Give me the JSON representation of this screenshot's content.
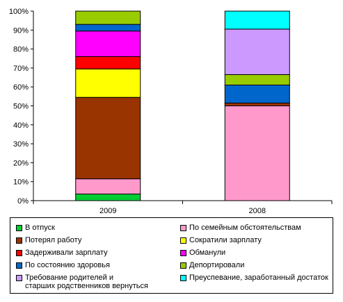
{
  "chart_data": {
    "type": "bar",
    "stacked": true,
    "categories": [
      "2009",
      "2008"
    ],
    "yticks": [
      "0%",
      "10%",
      "20%",
      "30%",
      "40%",
      "50%",
      "60%",
      "70%",
      "80%",
      "90%",
      "100%"
    ],
    "ylim": [
      0,
      100
    ],
    "grid": false,
    "legend": "bottom",
    "series": [
      {
        "name": "В отпуск",
        "color": "#00cc33",
        "values": [
          3.5,
          0.0
        ]
      },
      {
        "name": "По семейным обстоятельствам",
        "color": "#ff99cc",
        "values": [
          8.0,
          50.0
        ]
      },
      {
        "name": "Потерял работу",
        "color": "#993300",
        "values": [
          43.0,
          1.5
        ]
      },
      {
        "name": "Сократили зарплату",
        "color": "#ffff00",
        "values": [
          15.0,
          0.0
        ]
      },
      {
        "name": "Задерживали зарплату",
        "color": "#ff0000",
        "values": [
          6.5,
          0.0
        ]
      },
      {
        "name": "Обманули",
        "color": "#ff00ff",
        "values": [
          13.5,
          0.0
        ]
      },
      {
        "name": "По состоянию здоровья",
        "color": "#0066cc",
        "values": [
          3.5,
          9.5
        ]
      },
      {
        "name": "Депортировали",
        "color": "#99cc00",
        "values": [
          7.0,
          5.5
        ]
      },
      {
        "name": "Требование родителей и\nстарших родственников вернуться",
        "color": "#cc99ff",
        "values": [
          0.0,
          24.0
        ]
      },
      {
        "name": "Преуспевание, заработанный достаток",
        "color": "#00ffff",
        "values": [
          0.0,
          9.5
        ]
      }
    ]
  }
}
